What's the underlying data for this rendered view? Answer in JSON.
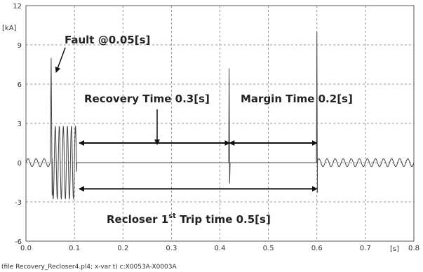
{
  "chart_data": {
    "type": "line",
    "title": "",
    "ylabel": "[kA]",
    "xunit": "[s]",
    "xlim": [
      0.0,
      0.8
    ],
    "ylim": [
      -6,
      12
    ],
    "xticks": [
      0.0,
      0.1,
      0.2,
      0.3,
      0.4,
      0.5,
      0.6,
      0.7,
      0.8
    ],
    "xtick_labels": [
      "0.0",
      "0.1",
      "0.2",
      "0.3",
      "0.4",
      "0.5",
      "0.6",
      "0.7",
      "0.8"
    ],
    "yticks": [
      -6,
      -3,
      0,
      3,
      6,
      9,
      12
    ],
    "ytick_labels": [
      "-6",
      "-3",
      "0",
      "3",
      "6",
      "9",
      "12"
    ],
    "grid": true,
    "series_color": "#444444",
    "signal": {
      "prefault_amplitude": 0.3,
      "frequency_hz": 60,
      "fault_time": 0.05,
      "fault_peak": 8.0,
      "fault_oscillation_amplitude": 2.8,
      "first_trip_time": 0.105,
      "reclose_transient_time": 0.42,
      "reclose_transient_peak": 7.2,
      "reclose_transient_trough": -1.6,
      "restore_time": 0.6,
      "restore_peak": 10.0,
      "restore_trough": -2.3,
      "restored_amplitude": 0.3
    },
    "annotations": {
      "fault": {
        "text": "Fault @0.05[s]"
      },
      "recovery": {
        "text": "Recovery Time 0.3[s]",
        "from": 0.11,
        "to": 0.42,
        "y": 1.5
      },
      "margin": {
        "text": "Margin Time 0.2[s]",
        "from": 0.42,
        "to": 0.6,
        "y": 1.5
      },
      "recloser": {
        "text_main": "Recloser 1",
        "text_sup": "st",
        "text_rest": " Trip  time 0.5[s]",
        "from": 0.11,
        "to": 0.6,
        "y": -2.0
      }
    },
    "footer": "(file Recovery_Recloser4.pl4; x-var t) c:X0053A-X0003A"
  }
}
